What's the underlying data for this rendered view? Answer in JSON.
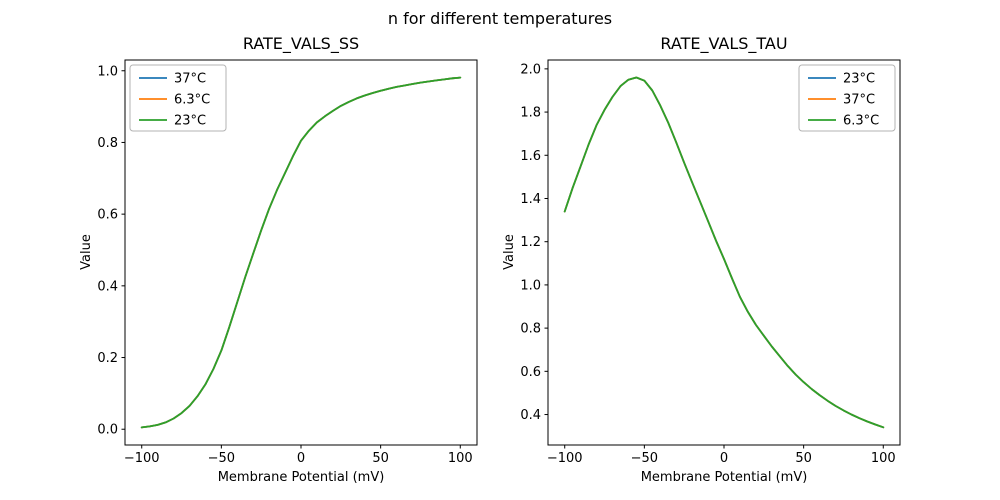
{
  "figure": {
    "suptitle": "n for different temperatures",
    "background": "#ffffff"
  },
  "colors": {
    "series_blue": "#1f77b4",
    "series_orange": "#ff7f0e",
    "series_green": "#2ca02c",
    "axes": "#000000",
    "legend_border": "#b3b3b3"
  },
  "chart_data": [
    {
      "type": "line",
      "title": "RATE_VALS_SS",
      "xlabel": "Membrane Potential (mV)",
      "ylabel": "Value",
      "xlim": [
        -110.5,
        110.5
      ],
      "ylim": [
        -0.044,
        1.03
      ],
      "xticks": [
        -100,
        -50,
        0,
        50,
        100
      ],
      "yticks": [
        0.0,
        0.2,
        0.4,
        0.6,
        0.8,
        1.0
      ],
      "grid": false,
      "legend_position": "upper-left",
      "note": "All three temperature curves overlap exactly; only the last-drawn green curve is visible.",
      "series": [
        {
          "name": "37°C",
          "color": "#1f77b4"
        },
        {
          "name": "6.3°C",
          "color": "#ff7f0e"
        },
        {
          "name": "23°C",
          "color": "#2ca02c"
        }
      ],
      "x": [
        -100,
        -95,
        -90,
        -85,
        -80,
        -75,
        -70,
        -65,
        -60,
        -55,
        -50,
        -45,
        -40,
        -35,
        -30,
        -25,
        -20,
        -15,
        -10,
        -5,
        0,
        5,
        10,
        15,
        20,
        25,
        30,
        35,
        40,
        45,
        50,
        55,
        60,
        65,
        70,
        75,
        80,
        85,
        90,
        95,
        100
      ],
      "values": [
        0.005,
        0.008,
        0.012,
        0.019,
        0.03,
        0.045,
        0.065,
        0.092,
        0.125,
        0.168,
        0.22,
        0.285,
        0.355,
        0.425,
        0.49,
        0.555,
        0.615,
        0.668,
        0.715,
        0.762,
        0.805,
        0.833,
        0.856,
        0.873,
        0.888,
        0.902,
        0.913,
        0.923,
        0.931,
        0.938,
        0.944,
        0.95,
        0.955,
        0.959,
        0.963,
        0.967,
        0.97,
        0.973,
        0.976,
        0.979,
        0.981
      ]
    },
    {
      "type": "line",
      "title": "RATE_VALS_TAU",
      "xlabel": "Membrane Potential (mV)",
      "ylabel": "Value",
      "xlim": [
        -110.5,
        110.5
      ],
      "ylim": [
        0.259,
        2.041
      ],
      "xticks": [
        -100,
        -50,
        0,
        50,
        100
      ],
      "yticks": [
        0.4,
        0.6,
        0.8,
        1.0,
        1.2,
        1.4,
        1.6,
        1.8,
        2.0
      ],
      "grid": false,
      "legend_position": "upper-right",
      "note": "All three temperature curves overlap exactly; only the last-drawn green curve is visible. Peak ~1.96 at -55 mV.",
      "series": [
        {
          "name": "23°C",
          "color": "#1f77b4"
        },
        {
          "name": "37°C",
          "color": "#ff7f0e"
        },
        {
          "name": "6.3°C",
          "color": "#2ca02c"
        }
      ],
      "x": [
        -100,
        -95,
        -90,
        -85,
        -80,
        -75,
        -70,
        -65,
        -60,
        -55,
        -50,
        -45,
        -40,
        -35,
        -30,
        -25,
        -20,
        -15,
        -10,
        -5,
        0,
        5,
        10,
        15,
        20,
        25,
        30,
        35,
        40,
        45,
        50,
        55,
        60,
        65,
        70,
        75,
        80,
        85,
        90,
        95,
        100
      ],
      "values": [
        1.34,
        1.45,
        1.55,
        1.65,
        1.74,
        1.81,
        1.87,
        1.92,
        1.95,
        1.96,
        1.945,
        1.9,
        1.83,
        1.75,
        1.66,
        1.565,
        1.475,
        1.385,
        1.295,
        1.205,
        1.12,
        1.03,
        0.945,
        0.875,
        0.815,
        0.765,
        0.715,
        0.67,
        0.625,
        0.585,
        0.55,
        0.518,
        0.49,
        0.464,
        0.44,
        0.419,
        0.4,
        0.383,
        0.368,
        0.354,
        0.341
      ]
    }
  ]
}
